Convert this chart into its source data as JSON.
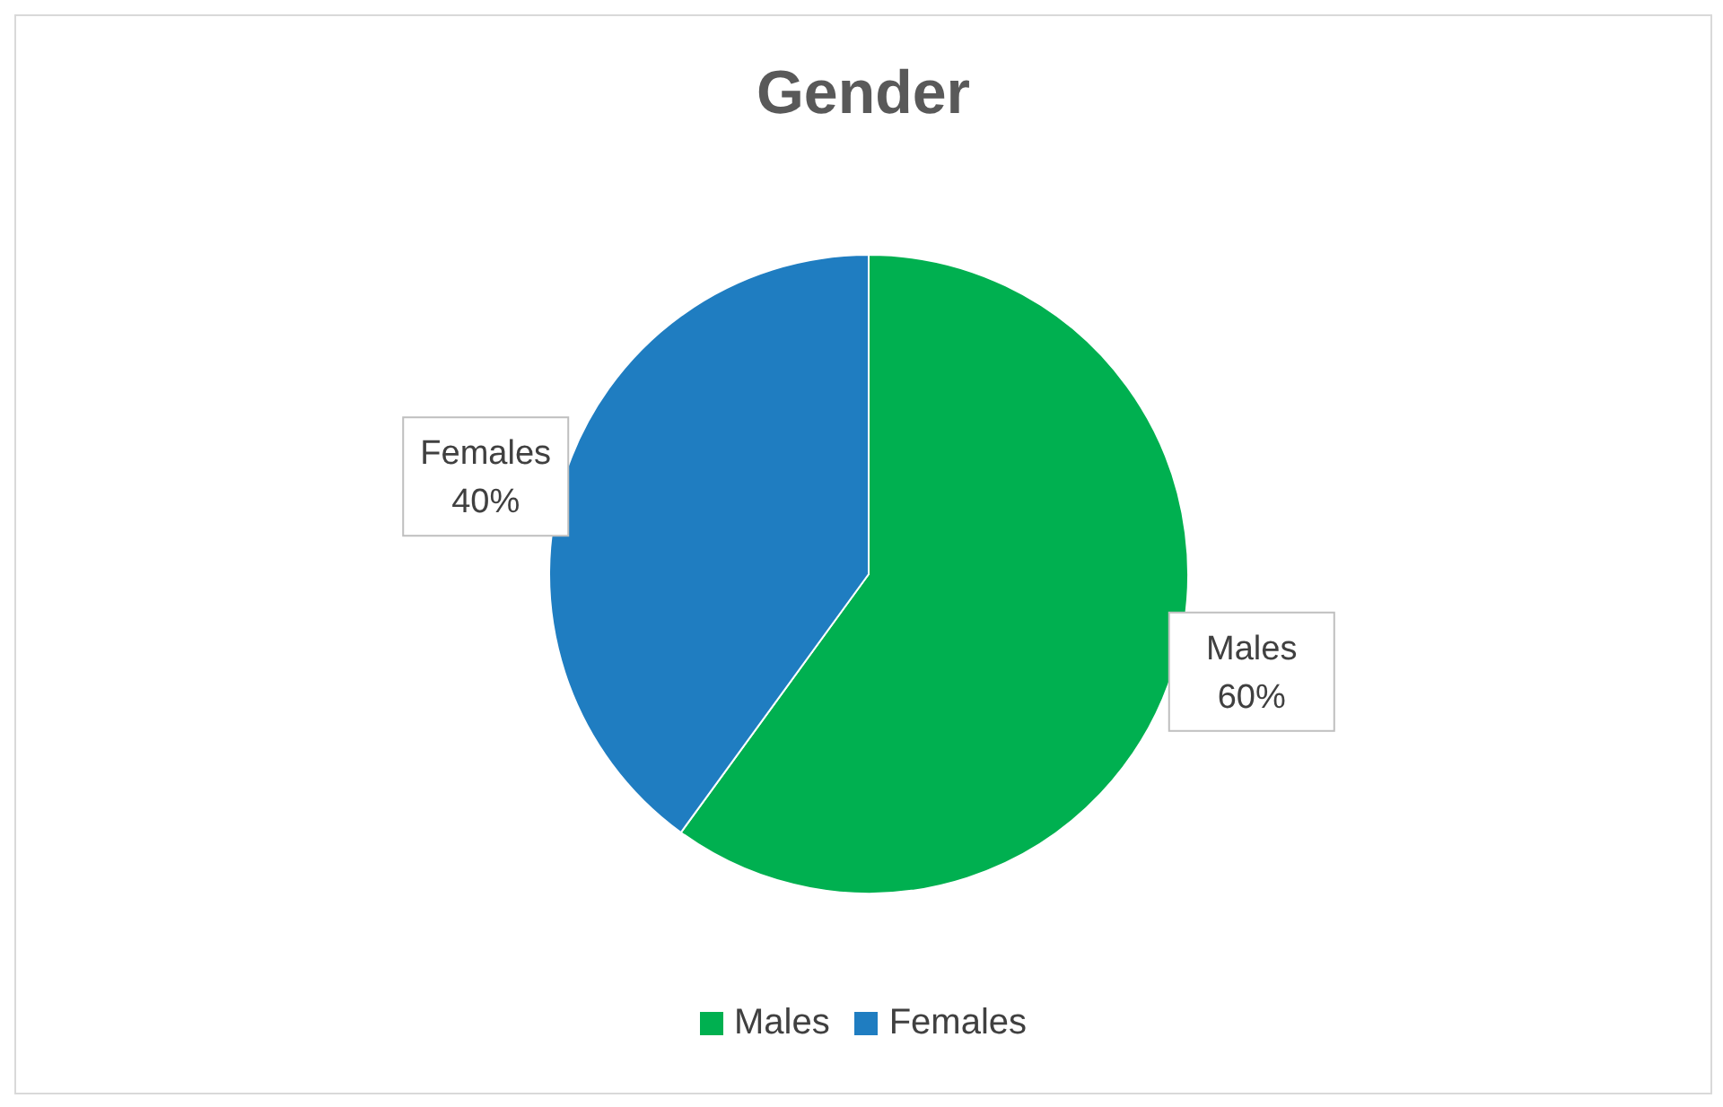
{
  "chart_data": {
    "type": "pie",
    "title": "Gender",
    "categories": [
      "Males",
      "Females"
    ],
    "values": [
      60,
      40
    ],
    "colors": [
      "#00b050",
      "#1f7dc1"
    ],
    "value_labels": [
      "60%",
      "40%"
    ],
    "legend": "bottom"
  }
}
